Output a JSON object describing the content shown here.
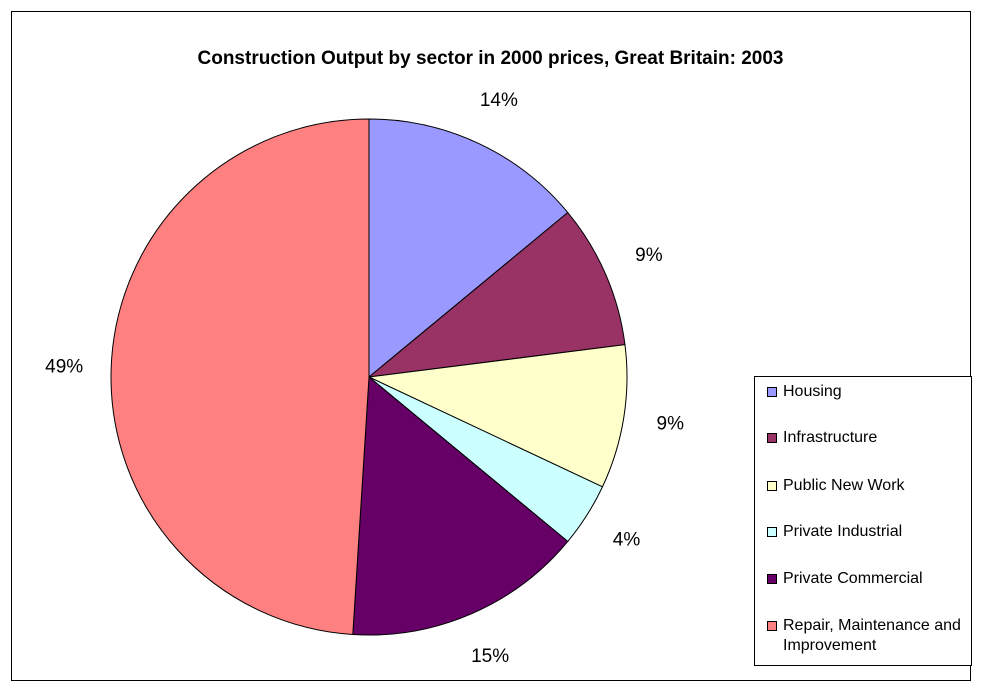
{
  "chart_data": {
    "type": "pie",
    "title": "Construction Output by sector in 2000 prices, Great Britain: 2003",
    "categories": [
      "Housing",
      "Infrastructure",
      "Public New Work",
      "Private Industrial",
      "Private Commercial",
      "Repair, Maintenance and Improvement"
    ],
    "values": [
      14,
      9,
      9,
      4,
      15,
      49
    ],
    "labels": [
      "14%",
      "9%",
      "9%",
      "4%",
      "15%",
      "49%"
    ],
    "colors": [
      "#9999ff",
      "#993366",
      "#ffffcc",
      "#ccffff",
      "#660066",
      "#ff8080"
    ],
    "legend_position": "right"
  }
}
